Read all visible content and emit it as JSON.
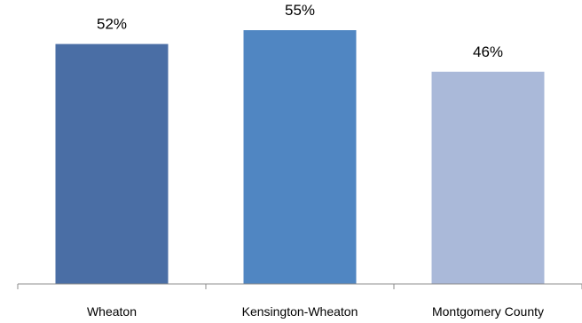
{
  "chart_data": {
    "type": "bar",
    "categories": [
      "Wheaton",
      "Kensington-Wheaton",
      "Montgomery County"
    ],
    "values": [
      52,
      55,
      46
    ],
    "data_labels": [
      "52%",
      "55%",
      "46%"
    ],
    "ylim": [
      0,
      60
    ],
    "grid": false,
    "legend": "none",
    "colors": [
      "#4a6ea5",
      "#5086c2",
      "#aab9d9"
    ],
    "axis_color": "#8c8c8c"
  }
}
